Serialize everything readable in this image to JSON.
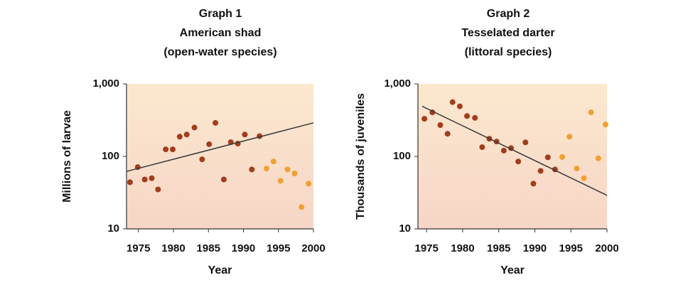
{
  "chart_data": [
    {
      "type": "scatter",
      "title": "Graph 1",
      "subtitle": [
        "American shad",
        "(open-water species)"
      ],
      "x_label": "Year",
      "y_label": "Millions of larvae",
      "ylog": true,
      "xlim": [
        1973.3,
        2000
      ],
      "ylim": [
        10,
        1000
      ],
      "xticks": [
        1975,
        1980,
        1985,
        1990,
        1995,
        2000
      ],
      "yticks": [
        10,
        100,
        {
          "value": 1000,
          "label": "1,000"
        }
      ],
      "series": [
        {
          "color": "#a23d1c",
          "x": [
            1973.8,
            1974.9,
            1975.9,
            1976.9,
            1977.8,
            1978.9,
            1979.9,
            1980.9,
            1981.9,
            1983.0,
            1984.1,
            1985.1,
            1986.0,
            1987.2,
            1988.2,
            1989.2,
            1990.2,
            1991.2,
            1992.3
          ],
          "values": [
            44,
            71,
            48,
            50,
            35,
            125,
            125,
            187,
            200,
            250,
            91,
            147,
            290,
            48,
            157,
            150,
            200,
            66,
            190
          ]
        },
        {
          "color": "#f0a033",
          "x": [
            1993.3,
            1994.3,
            1995.3,
            1996.3,
            1997.3,
            1998.3,
            1999.3
          ],
          "values": [
            68,
            85,
            46,
            66,
            58,
            20,
            42
          ]
        }
      ],
      "trend_line": {
        "color": "#3a3a3a",
        "x": [
          1973.3,
          2000
        ],
        "values": [
          62,
          290
        ]
      }
    },
    {
      "type": "scatter",
      "title": "Graph 2",
      "subtitle": [
        "Tesselated darter",
        "(littoral species)"
      ],
      "x_label": "Year",
      "y_label": "Thousands of juveniles",
      "ylog": true,
      "xlim": [
        1973.8,
        2000
      ],
      "ylim": [
        10,
        1000
      ],
      "xticks": [
        1975,
        1980,
        1985,
        1990,
        1995,
        2000
      ],
      "yticks": [
        10,
        100,
        {
          "value": 1000,
          "label": "1,000"
        }
      ],
      "series": [
        {
          "color": "#a23d1c",
          "x": [
            1974.7,
            1975.8,
            1976.9,
            1977.9,
            1978.6,
            1979.6,
            1980.6,
            1981.7,
            1982.7,
            1983.7,
            1984.7,
            1985.7,
            1986.7,
            1987.7,
            1988.7,
            1989.8,
            1990.8,
            1991.8,
            1992.8
          ],
          "values": [
            330,
            405,
            270,
            205,
            560,
            490,
            360,
            340,
            134,
            175,
            160,
            120,
            130,
            85,
            156,
            42,
            63,
            97,
            66
          ]
        },
        {
          "color": "#f0a033",
          "x": [
            1993.8,
            1994.8,
            1995.8,
            1996.8,
            1997.8,
            1998.8,
            1999.8
          ],
          "values": [
            98,
            187,
            68,
            50,
            405,
            94,
            275
          ]
        }
      ],
      "trend_line": {
        "color": "#3a3a3a",
        "x": [
          1974.4,
          2000
        ],
        "values": [
          490,
          29
        ]
      }
    }
  ]
}
